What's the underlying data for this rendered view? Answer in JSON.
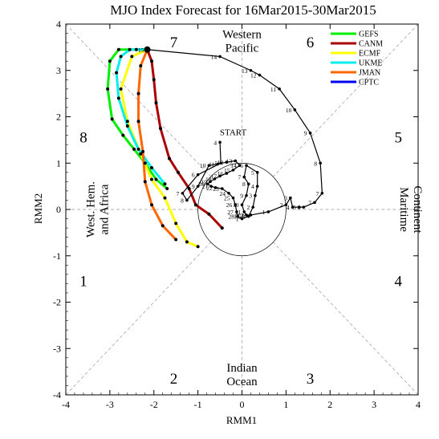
{
  "chart_data": {
    "type": "line",
    "title": "MJO Index Forecast for 16Mar2015-30Mar2015",
    "xlabel": "RMM1",
    "ylabel": "RMM2",
    "xlim": [
      -4,
      4
    ],
    "ylim": [
      -4,
      4
    ],
    "x_ticks": [
      "-4",
      "-3",
      "-2",
      "-1",
      "0",
      "1",
      "2",
      "3",
      "4"
    ],
    "y_ticks": [
      "-4",
      "-3",
      "-2",
      "-1",
      "0",
      "1",
      "2",
      "3",
      "4"
    ],
    "phase_labels": [
      {
        "text": "1",
        "x": -3.6,
        "y": -1.55
      },
      {
        "text": "2",
        "x": -1.55,
        "y": -3.65
      },
      {
        "text": "3",
        "x": 1.55,
        "y": -3.65
      },
      {
        "text": "4",
        "x": 3.55,
        "y": -1.55
      },
      {
        "text": "5",
        "x": 3.55,
        "y": 1.55
      },
      {
        "text": "6",
        "x": 1.55,
        "y": 3.6
      },
      {
        "text": "7",
        "x": -1.55,
        "y": 3.6
      },
      {
        "text": "8",
        "x": -3.6,
        "y": 1.55
      }
    ],
    "region_labels": {
      "top": [
        "Western",
        "Pacific"
      ],
      "bottom": [
        "Indian",
        "Ocean"
      ],
      "left": [
        "West. Hem.",
        "and Africa"
      ],
      "right": [
        "Maritime",
        "Continent"
      ]
    },
    "start_label": {
      "text": "START",
      "x": -0.2,
      "y": 1.6
    },
    "end_label": {
      "text": "15",
      "x": -2.65,
      "y": 3.45
    },
    "observed": {
      "name": "observed",
      "color": "#000000",
      "points": [
        {
          "x": -0.5,
          "y": 1.45,
          "label": "4"
        },
        {
          "x": -0.48,
          "y": 1.0,
          "label": "5"
        },
        {
          "x": -1.0,
          "y": 0.75,
          "label": "6"
        },
        {
          "x": -1.35,
          "y": 0.35,
          "label": "7"
        },
        {
          "x": -1.25,
          "y": 0.2,
          "label": "8"
        },
        {
          "x": -1.0,
          "y": 0.5,
          "label": "9"
        },
        {
          "x": -0.75,
          "y": 0.95,
          "label": "10"
        },
        {
          "x": -0.55,
          "y": 0.98,
          "label": "11"
        },
        {
          "x": -0.35,
          "y": 1.02,
          "label": "12"
        },
        {
          "x": -0.15,
          "y": 1.05,
          "label": "13"
        },
        {
          "x": -0.05,
          "y": 0.95,
          "label": "14"
        },
        {
          "x": -0.2,
          "y": 0.85,
          "label": "15"
        },
        {
          "x": -0.35,
          "y": 0.78,
          "label": "16"
        },
        {
          "x": -0.5,
          "y": 0.72,
          "label": "17"
        },
        {
          "x": -0.62,
          "y": 0.66,
          "label": "18"
        },
        {
          "x": -0.72,
          "y": 0.6,
          "label": "19"
        },
        {
          "x": -0.78,
          "y": 0.55,
          "label": "20"
        },
        {
          "x": -0.7,
          "y": 0.5,
          "label": "21"
        },
        {
          "x": -0.6,
          "y": 0.47,
          "label": "22"
        },
        {
          "x": -0.45,
          "y": 0.45,
          "label": "23"
        },
        {
          "x": -0.3,
          "y": 0.35,
          "label": "24"
        },
        {
          "x": -0.2,
          "y": 0.25,
          "label": "25"
        },
        {
          "x": -0.15,
          "y": 0.1,
          "label": "26"
        },
        {
          "x": -0.12,
          "y": -0.05,
          "label": "27"
        },
        {
          "x": -0.1,
          "y": -0.15,
          "label": "28"
        },
        {
          "x": 0.0,
          "y": -0.2,
          "label": "1"
        },
        {
          "x": 0.15,
          "y": -0.15,
          "label": "FEB"
        },
        {
          "x": 0.25,
          "y": 0.05,
          "label": "2"
        },
        {
          "x": 0.3,
          "y": 0.3,
          "label": "3"
        },
        {
          "x": 0.35,
          "y": 0.5,
          "label": "4"
        },
        {
          "x": 0.35,
          "y": 0.8,
          "label": "5"
        },
        {
          "x": 0.1,
          "y": 0.95,
          "label": "6"
        },
        {
          "x": 0.05,
          "y": 0.7,
          "label": "7"
        },
        {
          "x": 0.15,
          "y": 0.55,
          "label": "8"
        },
        {
          "x": 0.1,
          "y": 0.3,
          "label": "9"
        },
        {
          "x": 0.0,
          "y": 0.1,
          "label": "10"
        },
        {
          "x": 0.05,
          "y": -0.05,
          "label": "11"
        },
        {
          "x": 0.1,
          "y": -0.12,
          "label": "12"
        },
        {
          "x": 0.2,
          "y": -0.12,
          "label": "13"
        },
        {
          "x": 0.6,
          "y": -0.05,
          "label": "1"
        },
        {
          "x": 1.0,
          "y": 0.1,
          "label": "2"
        },
        {
          "x": 1.1,
          "y": 0.25,
          "label": "3"
        },
        {
          "x": 1.15,
          "y": 0.05,
          "label": "4"
        },
        {
          "x": 1.3,
          "y": 0.05,
          "label": "5"
        },
        {
          "x": 1.4,
          "y": 0.05,
          "label": "6"
        },
        {
          "x": 1.65,
          "y": 0.15,
          "label": "7"
        },
        {
          "x": 1.82,
          "y": 0.35,
          "label": "7"
        },
        {
          "x": 1.78,
          "y": 1.0,
          "label": "8"
        },
        {
          "x": 1.55,
          "y": 1.65,
          "label": "9"
        },
        {
          "x": 1.2,
          "y": 2.15,
          "label": "10"
        },
        {
          "x": 0.85,
          "y": 2.6,
          "label": "11"
        },
        {
          "x": 0.4,
          "y": 2.9,
          "label": "12"
        },
        {
          "x": 0.2,
          "y": 3.0,
          "label": "13"
        },
        {
          "x": -0.5,
          "y": 3.3,
          "label": "14"
        },
        {
          "x": -2.15,
          "y": 3.45,
          "label": "15"
        }
      ]
    },
    "series": [
      {
        "name": "GEFS",
        "color": "#00ee00",
        "points": [
          [
            -2.15,
            3.45
          ],
          [
            -2.4,
            3.45
          ],
          [
            -2.8,
            3.45
          ],
          [
            -3.0,
            3.2
          ],
          [
            -3.05,
            2.6
          ],
          [
            -2.95,
            1.95
          ],
          [
            -2.7,
            1.6
          ],
          [
            -2.45,
            1.3
          ],
          [
            -2.2,
            1.0
          ],
          [
            -1.95,
            0.65
          ],
          [
            -1.7,
            0.45
          ]
        ]
      },
      {
        "name": "CANM",
        "color": "#aa0000",
        "points": [
          [
            -2.15,
            3.45
          ],
          [
            -2.05,
            3.2
          ],
          [
            -2.0,
            2.8
          ],
          [
            -1.95,
            2.3
          ],
          [
            -1.85,
            1.75
          ],
          [
            -1.65,
            1.1
          ],
          [
            -1.45,
            0.8
          ],
          [
            -1.2,
            0.45
          ],
          [
            -1.05,
            0.1
          ],
          [
            -0.75,
            -0.1
          ],
          [
            -0.45,
            -0.4
          ]
        ]
      },
      {
        "name": "ECMF",
        "color": "#ffff00",
        "points": [
          [
            -2.15,
            3.45
          ],
          [
            -2.5,
            3.3
          ],
          [
            -2.75,
            2.6
          ],
          [
            -2.6,
            1.9
          ],
          [
            -2.3,
            1.2
          ],
          [
            -2.05,
            0.65
          ],
          [
            -1.75,
            0.25
          ],
          [
            -1.5,
            -0.3
          ],
          [
            -1.25,
            -0.7
          ],
          [
            -1.0,
            -0.8
          ]
        ]
      },
      {
        "name": "UKME",
        "color": "#00eeee",
        "points": [
          [
            -2.15,
            3.45
          ],
          [
            -2.55,
            3.45
          ],
          [
            -2.75,
            3.3
          ],
          [
            -2.85,
            2.95
          ],
          [
            -2.8,
            2.4
          ],
          [
            -2.6,
            1.8
          ],
          [
            -2.35,
            1.3
          ],
          [
            -2.05,
            0.9
          ],
          [
            -1.75,
            0.55
          ]
        ]
      },
      {
        "name": "JMAN",
        "color": "#ff6600",
        "points": [
          [
            -2.15,
            3.45
          ],
          [
            -2.3,
            3.1
          ],
          [
            -2.35,
            2.5
          ],
          [
            -2.35,
            1.9
          ],
          [
            -2.25,
            1.25
          ],
          [
            -2.2,
            0.6
          ],
          [
            -2.05,
            0.1
          ],
          [
            -1.8,
            -0.35
          ],
          [
            -1.5,
            -0.65
          ]
        ]
      },
      {
        "name": "CPTC",
        "color": "#0000ee",
        "points": []
      }
    ]
  }
}
